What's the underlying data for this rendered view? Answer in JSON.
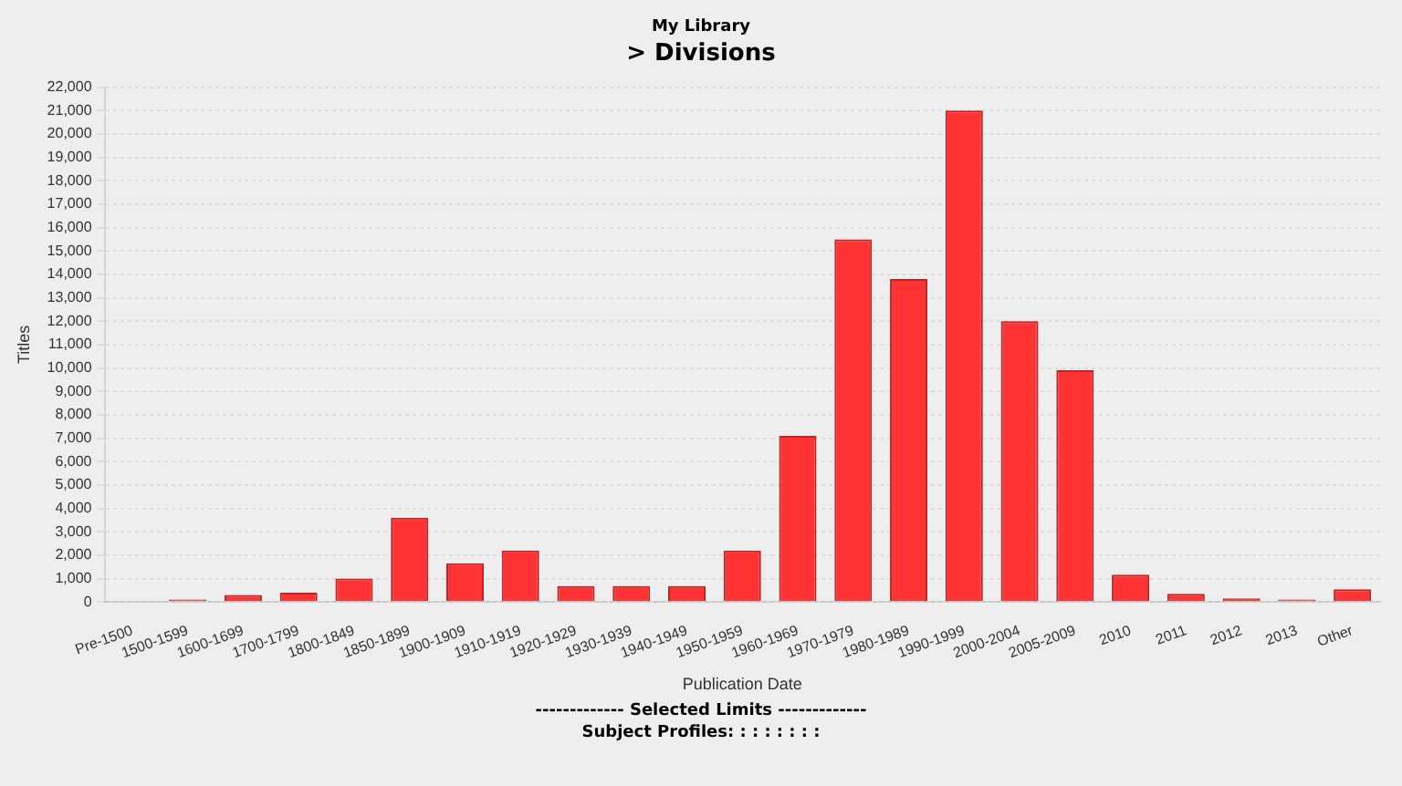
{
  "chart_data": {
    "type": "bar",
    "title": "> Divisions",
    "subtitle": "My Library",
    "xlabel": "Publication Date",
    "ylabel": "Titles",
    "categories": [
      "Pre-1500",
      "1500-1599",
      "1600-1699",
      "1700-1799",
      "1800-1849",
      "1850-1899",
      "1900-1909",
      "1910-1919",
      "1920-1929",
      "1930-1939",
      "1940-1949",
      "1950-1959",
      "1960-1969",
      "1970-1979",
      "1980-1989",
      "1990-1999",
      "2000-2004",
      "2005-2009",
      "2010",
      "2011",
      "2012",
      "2013",
      "Other"
    ],
    "values": [
      null,
      100,
      300,
      400,
      1000,
      3600,
      1650,
      2200,
      680,
      680,
      680,
      2200,
      7100,
      15500,
      13800,
      21000,
      12000,
      9900,
      1170,
      350,
      150,
      100,
      540
    ],
    "color": "#ff3333",
    "ylim": [
      0,
      22000
    ],
    "yticks": [
      0,
      {
        "value": 1000,
        "label": "1,000"
      },
      {
        "value": 2000,
        "label": "2,000"
      },
      {
        "value": 3000,
        "label": "3,000"
      },
      {
        "value": 4000,
        "label": "4,000"
      },
      {
        "value": 5000,
        "label": "5,000"
      },
      {
        "value": 6000,
        "label": "6,000"
      },
      {
        "value": 7000,
        "label": "7,000"
      },
      {
        "value": 8000,
        "label": "8,000"
      },
      {
        "value": 9000,
        "label": "9,000"
      },
      {
        "value": 10000,
        "label": "10,000"
      },
      {
        "value": 11000,
        "label": "11,000"
      },
      {
        "value": 12000,
        "label": "12,000"
      },
      {
        "value": 13000,
        "label": "13,000"
      },
      {
        "value": 14000,
        "label": "14,000"
      },
      {
        "value": 15000,
        "label": "15,000"
      },
      {
        "value": 16000,
        "label": "16,000"
      },
      {
        "value": 17000,
        "label": "17,000"
      },
      {
        "value": 18000,
        "label": "18,000"
      },
      {
        "value": 19000,
        "label": "19,000"
      },
      {
        "value": 20000,
        "label": "20,000"
      },
      {
        "value": 21000,
        "label": "21,000"
      },
      {
        "value": 22000,
        "label": "22,000"
      }
    ],
    "grid": "y",
    "annotations": [
      "------------- Selected Limits -------------",
      "Subject Profiles: : : : : : : :"
    ]
  }
}
